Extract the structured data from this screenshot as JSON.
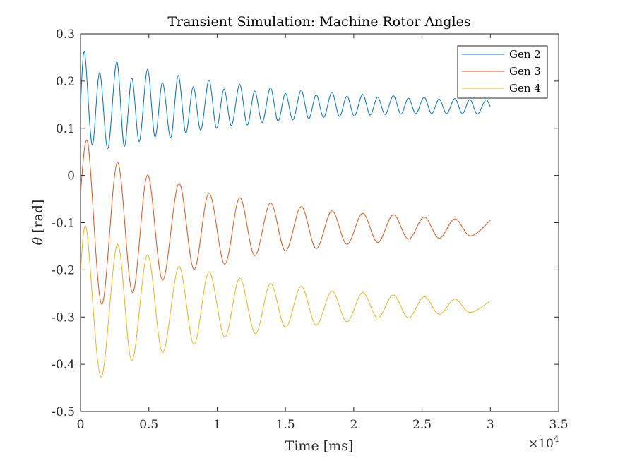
{
  "chart_data": {
    "type": "line",
    "title": "Transient Simulation: Machine Rotor Angles",
    "xlabel": "Time [ms]",
    "ylabel": "θ [rad]",
    "ylabel_symbol": "θ",
    "ylabel_unit": "[rad]",
    "x_exponent_label": "×10",
    "x_exponent_power": "4",
    "xlim": [
      0,
      35000
    ],
    "ylim": [
      -0.5,
      0.3
    ],
    "x_ticks": [
      0,
      5000,
      10000,
      15000,
      20000,
      25000,
      30000,
      35000
    ],
    "x_tick_labels": [
      "0",
      "0.5",
      "1",
      "1.5",
      "2",
      "2.5",
      "3",
      "3.5"
    ],
    "y_ticks": [
      -0.5,
      -0.4,
      -0.3,
      -0.2,
      -0.1,
      0,
      0.1,
      0.2,
      0.3
    ],
    "y_tick_labels": [
      "-0.5",
      "-0.4",
      "-0.3",
      "-0.2",
      "-0.1",
      "0",
      "0.1",
      "0.2",
      "0.3"
    ],
    "grid": false,
    "legend_position": "top-right",
    "series": [
      {
        "name": "Gen 2",
        "color": "#0072BD",
        "x": [
          0,
          300,
          850,
          1400,
          2000,
          2650,
          3200,
          3750,
          4300,
          4900,
          5450,
          6000,
          6600,
          7150,
          7700,
          8250,
          8800,
          9400,
          9950,
          10500,
          11050,
          11650,
          12200,
          12750,
          13300,
          13900,
          14450,
          15000,
          15550,
          16150,
          16700,
          17250,
          17800,
          18400,
          18950,
          19500,
          20050,
          20650,
          21200,
          21750,
          22300,
          22900,
          23450,
          24000,
          24550,
          25150,
          25700,
          26250,
          26800,
          27400,
          27950,
          28500,
          29050,
          29650,
          30000
        ],
        "y": [
          0.15,
          0.262,
          0.065,
          0.218,
          0.057,
          0.241,
          0.062,
          0.206,
          0.072,
          0.225,
          0.082,
          0.197,
          0.08,
          0.212,
          0.09,
          0.188,
          0.096,
          0.202,
          0.1,
          0.183,
          0.106,
          0.193,
          0.107,
          0.179,
          0.112,
          0.186,
          0.115,
          0.174,
          0.118,
          0.181,
          0.12,
          0.171,
          0.123,
          0.176,
          0.125,
          0.168,
          0.126,
          0.172,
          0.128,
          0.166,
          0.129,
          0.169,
          0.13,
          0.164,
          0.131,
          0.166,
          0.131,
          0.162,
          0.131,
          0.163,
          0.131,
          0.161,
          0.13,
          0.16,
          0.145
        ]
      },
      {
        "name": "Gen 3",
        "color": "#D95319",
        "x": [
          0,
          550,
          1550,
          2700,
          3800,
          4900,
          6000,
          7200,
          8300,
          9400,
          10550,
          11650,
          12750,
          13900,
          15000,
          16150,
          17250,
          18400,
          19500,
          20650,
          21750,
          22900,
          24000,
          25150,
          26250,
          27400,
          28550,
          30000
        ],
        "y": [
          -0.035,
          0.067,
          -0.273,
          0.028,
          -0.248,
          0.001,
          -0.222,
          -0.017,
          -0.199,
          -0.037,
          -0.188,
          -0.047,
          -0.17,
          -0.058,
          -0.16,
          -0.066,
          -0.155,
          -0.075,
          -0.146,
          -0.08,
          -0.142,
          -0.083,
          -0.135,
          -0.088,
          -0.133,
          -0.092,
          -0.128,
          -0.095
        ]
      },
      {
        "name": "Gen 4",
        "color": "#EDB120",
        "x": [
          0,
          450,
          1500,
          2700,
          3750,
          4900,
          6000,
          7200,
          8300,
          9400,
          10550,
          11650,
          12800,
          13900,
          15000,
          16150,
          17250,
          18400,
          19500,
          20650,
          21750,
          22900,
          24000,
          25150,
          26250,
          27400,
          28500,
          30000
        ],
        "y": [
          -0.2,
          -0.115,
          -0.427,
          -0.146,
          -0.392,
          -0.168,
          -0.375,
          -0.193,
          -0.358,
          -0.204,
          -0.342,
          -0.218,
          -0.335,
          -0.229,
          -0.322,
          -0.235,
          -0.317,
          -0.245,
          -0.31,
          -0.248,
          -0.302,
          -0.253,
          -0.302,
          -0.257,
          -0.294,
          -0.262,
          -0.29,
          -0.266
        ]
      }
    ]
  }
}
